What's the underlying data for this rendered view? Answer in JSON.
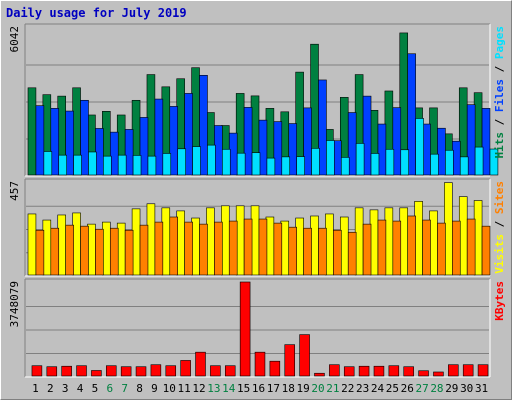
{
  "chart_data": {
    "type": "bar",
    "title": "Daily usage for July 2019",
    "categories": [
      "1",
      "2",
      "3",
      "4",
      "5",
      "6",
      "7",
      "8",
      "9",
      "10",
      "11",
      "12",
      "13",
      "14",
      "15",
      "16",
      "17",
      "18",
      "19",
      "20",
      "21",
      "22",
      "23",
      "24",
      "25",
      "26",
      "27",
      "28",
      "29",
      "30",
      "31"
    ],
    "weekend_days": [
      "6",
      "7",
      "13",
      "14",
      "20",
      "21",
      "27",
      "28"
    ],
    "panels": [
      {
        "name": "hits-files-pages",
        "max_label": "6042",
        "ylim": [
          0,
          6042
        ],
        "legend": [
          "Pages",
          "Files",
          "Hits"
        ],
        "series": [
          {
            "name": "Hits",
            "color": "#008040",
            "values": [
              3560,
              3280,
              3220,
              3560,
              2450,
              2600,
              2450,
              3050,
              4100,
              3600,
              3930,
              4380,
              2550,
              2020,
              3330,
              3230,
              2720,
              2580,
              4200,
              5340,
              1860,
              3170,
              4100,
              2640,
              3430,
              5800,
              2740,
              2740,
              1680,
              3560,
              3360
            ]
          },
          {
            "name": "Files",
            "color": "#0040ff",
            "values": [
              2830,
              2720,
              2610,
              3050,
              1900,
              1750,
              1860,
              2350,
              3100,
              2800,
              3330,
              4070,
              2020,
              1710,
              2760,
              2240,
              2180,
              2100,
              2740,
              3880,
              1400,
              2550,
              3220,
              2080,
              2750,
              4950,
              2080,
              1910,
              1380,
              2870,
              2720
            ]
          },
          {
            "name": "Pages",
            "color": "#00e0ff",
            "values": [
              960,
              810,
              810,
              940,
              770,
              810,
              800,
              770,
              880,
              1070,
              1160,
              1220,
              1050,
              890,
              910,
              690,
              740,
              750,
              1090,
              1410,
              720,
              1290,
              880,
              1050,
              1030,
              2310,
              850,
              1010,
              740,
              1140,
              1060
            ]
          }
        ]
      },
      {
        "name": "visits-sites",
        "max_label": "457",
        "ylim": [
          0,
          457
        ],
        "legend": [
          "Sites",
          "Visits"
        ],
        "series": [
          {
            "name": "Visits",
            "color": "#ffff00",
            "values": [
              300,
              270,
              295,
              305,
              250,
              260,
              255,
              325,
              350,
              330,
              315,
              280,
              330,
              340,
              340,
              340,
              285,
              265,
              280,
              290,
              300,
              285,
              330,
              320,
              330,
              330,
              362,
              315,
              454,
              385,
              366
            ]
          },
          {
            "name": "Sites",
            "color": "#ff8000",
            "values": [
              220,
              230,
              245,
              240,
              225,
              230,
              220,
              245,
              260,
              285,
              260,
              250,
              260,
              265,
              275,
              275,
              255,
              235,
              230,
              230,
              220,
              210,
              250,
              270,
              265,
              290,
              270,
              255,
              265,
              275,
              240
            ]
          }
        ]
      },
      {
        "name": "kbytes",
        "max_label": "3748079",
        "ylim": [
          0,
          3748079
        ],
        "legend": [
          "KBytes"
        ],
        "series": [
          {
            "name": "KBytes",
            "color": "#ff0000",
            "values": [
              410000,
              370000,
              390000,
              410000,
              220000,
              410000,
              370000,
              370000,
              450000,
              410000,
              620000,
              950000,
              410000,
              410000,
              3748079,
              950000,
              590000,
              1250000,
              1650000,
              110000,
              450000,
              370000,
              390000,
              390000,
              410000,
              370000,
              210000,
              160000,
              450000,
              450000,
              450000
            ]
          }
        ]
      }
    ],
    "grid": true
  }
}
